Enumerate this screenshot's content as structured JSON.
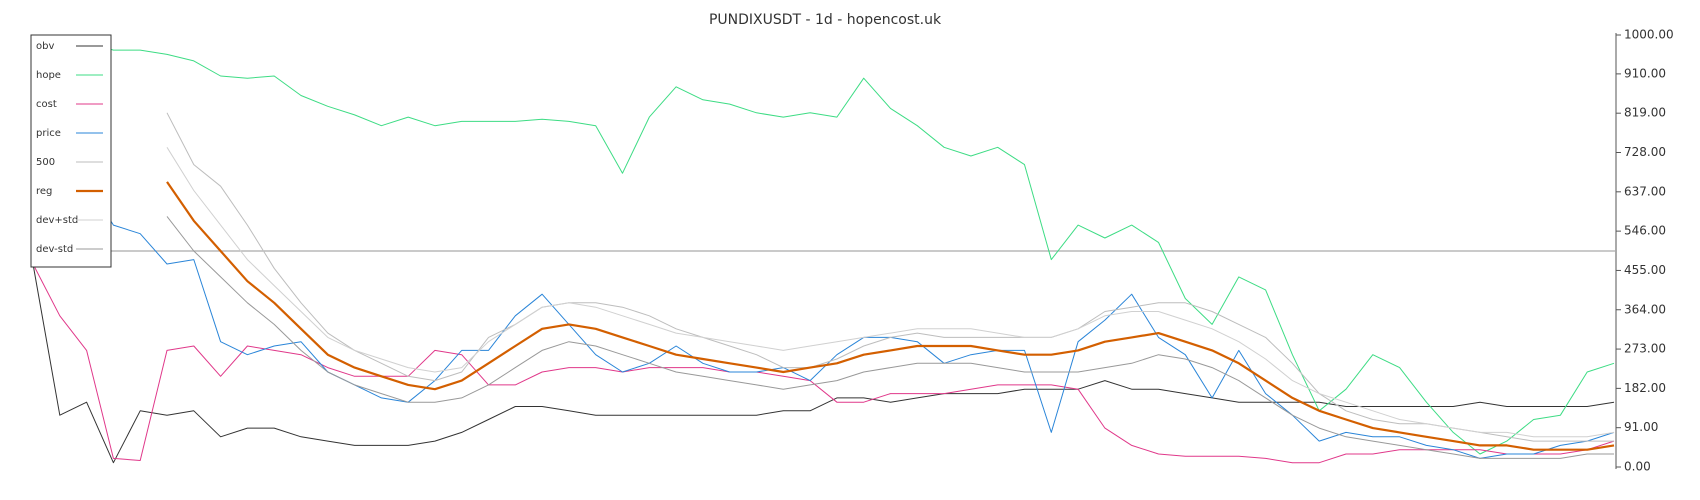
{
  "chart_data": {
    "type": "line",
    "title": "PUNDIXUSDT - 1d - hopencost.uk",
    "ylim": [
      0,
      1000
    ],
    "yticks": [
      {
        "value": 0,
        "label": "0.00"
      },
      {
        "value": 91,
        "label": "91.00"
      },
      {
        "value": 182,
        "label": "182.00"
      },
      {
        "value": 273,
        "label": "273.00"
      },
      {
        "value": 364,
        "label": "364.00"
      },
      {
        "value": 455,
        "label": "455.00"
      },
      {
        "value": 546,
        "label": "546.00"
      },
      {
        "value": 637,
        "label": "637.00"
      },
      {
        "value": 728,
        "label": "728.00"
      },
      {
        "value": 819,
        "label": "819.00"
      },
      {
        "value": 910,
        "label": "910.00"
      },
      {
        "value": 1000,
        "label": "1000.00"
      }
    ],
    "y_axis_side": "right",
    "legend": "upper left",
    "reference_line": 500,
    "series": [
      {
        "name": "obv",
        "color": "#333333",
        "width": 1,
        "values": [
          470,
          120,
          150,
          10,
          130,
          120,
          130,
          70,
          90,
          90,
          70,
          60,
          50,
          50,
          50,
          60,
          80,
          110,
          140,
          140,
          130,
          120,
          120,
          120,
          120,
          120,
          120,
          120,
          130,
          130,
          160,
          160,
          150,
          160,
          170,
          170,
          170,
          180,
          180,
          180,
          200,
          180,
          180,
          170,
          160,
          150,
          150,
          150,
          150,
          140,
          140,
          140,
          140,
          140,
          150,
          140,
          140,
          140,
          140,
          150
        ]
      },
      {
        "name": "hope",
        "color": "#3ddc84",
        "width": 1,
        "values": [
          990,
          985,
          985,
          965,
          965,
          955,
          940,
          905,
          900,
          905,
          860,
          835,
          815,
          790,
          810,
          790,
          800,
          800,
          800,
          805,
          800,
          790,
          680,
          810,
          880,
          850,
          840,
          820,
          810,
          820,
          810,
          900,
          830,
          790,
          740,
          720,
          740,
          700,
          480,
          560,
          530,
          560,
          520,
          390,
          330,
          440,
          410,
          260,
          130,
          180,
          260,
          230,
          150,
          80,
          30,
          60,
          110,
          120,
          220,
          240
        ]
      },
      {
        "name": "cost",
        "color": "#e0388a",
        "width": 1,
        "values": [
          470,
          350,
          270,
          20,
          15,
          270,
          280,
          210,
          280,
          270,
          260,
          230,
          210,
          210,
          210,
          270,
          260,
          190,
          190,
          220,
          230,
          230,
          220,
          230,
          230,
          230,
          220,
          220,
          210,
          200,
          150,
          150,
          170,
          170,
          170,
          180,
          190,
          190,
          190,
          180,
          90,
          50,
          30,
          25,
          25,
          25,
          20,
          10,
          10,
          30,
          30,
          40,
          40,
          40,
          40,
          30,
          30,
          30,
          40,
          60
        ]
      },
      {
        "name": "price",
        "color": "#2a85d8",
        "width": 1,
        "values": [
          640,
          620,
          660,
          560,
          540,
          470,
          480,
          290,
          260,
          280,
          290,
          220,
          190,
          160,
          150,
          200,
          270,
          270,
          350,
          400,
          330,
          260,
          220,
          240,
          280,
          240,
          220,
          220,
          230,
          200,
          260,
          300,
          300,
          290,
          240,
          260,
          270,
          270,
          80,
          290,
          340,
          400,
          300,
          260,
          160,
          270,
          170,
          120,
          60,
          80,
          70,
          70,
          50,
          40,
          20,
          30,
          30,
          50,
          60,
          80
        ]
      },
      {
        "name": "500",
        "color": "#bdbdbd",
        "width": 1,
        "values": [
          null,
          null,
          null,
          null,
          null,
          820,
          700,
          650,
          560,
          460,
          380,
          310,
          270,
          240,
          210,
          200,
          220,
          300,
          330,
          370,
          380,
          380,
          370,
          350,
          320,
          300,
          280,
          260,
          230,
          230,
          250,
          280,
          300,
          310,
          300,
          300,
          300,
          300,
          300,
          320,
          360,
          370,
          380,
          380,
          360,
          330,
          300,
          240,
          170,
          130,
          110,
          100,
          100,
          90,
          80,
          70,
          60,
          60,
          60,
          60
        ]
      },
      {
        "name": "reg",
        "color": "#d35f00",
        "width": 2.2,
        "values": [
          null,
          null,
          null,
          null,
          null,
          660,
          570,
          500,
          430,
          380,
          320,
          260,
          230,
          210,
          190,
          180,
          200,
          240,
          280,
          320,
          330,
          320,
          300,
          280,
          260,
          250,
          240,
          230,
          220,
          230,
          240,
          260,
          270,
          280,
          280,
          280,
          270,
          260,
          260,
          270,
          290,
          300,
          310,
          290,
          270,
          240,
          200,
          160,
          130,
          110,
          90,
          80,
          70,
          60,
          50,
          50,
          40,
          40,
          40,
          50
        ]
      },
      {
        "name": "dev+std",
        "color": "#d0d0d0",
        "width": 1,
        "values": [
          null,
          null,
          null,
          null,
          null,
          740,
          640,
          560,
          480,
          420,
          360,
          300,
          270,
          250,
          230,
          220,
          230,
          290,
          330,
          370,
          380,
          370,
          350,
          330,
          310,
          300,
          290,
          280,
          270,
          280,
          290,
          300,
          310,
          320,
          320,
          320,
          310,
          300,
          300,
          320,
          350,
          360,
          360,
          340,
          320,
          290,
          250,
          200,
          170,
          150,
          130,
          110,
          100,
          90,
          80,
          80,
          70,
          70,
          70,
          80
        ]
      },
      {
        "name": "dev-std",
        "color": "#999999",
        "width": 1,
        "values": [
          null,
          null,
          null,
          null,
          null,
          580,
          500,
          440,
          380,
          330,
          270,
          220,
          190,
          170,
          150,
          150,
          160,
          190,
          230,
          270,
          290,
          280,
          260,
          240,
          220,
          210,
          200,
          190,
          180,
          190,
          200,
          220,
          230,
          240,
          240,
          240,
          230,
          220,
          220,
          220,
          230,
          240,
          260,
          250,
          230,
          200,
          160,
          120,
          90,
          70,
          60,
          50,
          40,
          30,
          20,
          20,
          20,
          20,
          30,
          30
        ]
      }
    ]
  }
}
